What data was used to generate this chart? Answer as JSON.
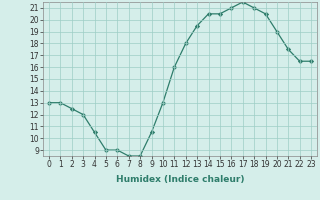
{
  "x": [
    0,
    1,
    2,
    3,
    4,
    5,
    6,
    7,
    8,
    9,
    10,
    11,
    12,
    13,
    14,
    15,
    16,
    17,
    18,
    19,
    20,
    21,
    22,
    23
  ],
  "y": [
    13,
    13,
    12.5,
    12,
    10.5,
    9,
    9,
    8.5,
    8.5,
    10.5,
    13,
    16,
    18,
    19.5,
    20.5,
    20.5,
    21,
    21.5,
    21,
    20.5,
    19,
    17.5,
    16.5,
    16.5
  ],
  "line_color": "#2e7d6b",
  "marker": "D",
  "marker_size": 2.2,
  "bg_color": "#d5eeea",
  "grid_color": "#9ecec6",
  "xlabel": "Humidex (Indice chaleur)",
  "xlim": [
    -0.5,
    23.5
  ],
  "ylim": [
    8.5,
    21.5
  ],
  "yticks": [
    9,
    10,
    11,
    12,
    13,
    14,
    15,
    16,
    17,
    18,
    19,
    20,
    21
  ],
  "xticks": [
    0,
    1,
    2,
    3,
    4,
    5,
    6,
    7,
    8,
    9,
    10,
    11,
    12,
    13,
    14,
    15,
    16,
    17,
    18,
    19,
    20,
    21,
    22,
    23
  ],
  "xtick_labels": [
    "0",
    "1",
    "2",
    "3",
    "4",
    "5",
    "6",
    "7",
    "8",
    "9",
    "10",
    "11",
    "12",
    "13",
    "14",
    "15",
    "16",
    "17",
    "18",
    "19",
    "20",
    "21",
    "22",
    "23"
  ],
  "ytick_labels": [
    "9",
    "10",
    "11",
    "12",
    "13",
    "14",
    "15",
    "16",
    "17",
    "18",
    "19",
    "20",
    "21"
  ],
  "tick_fontsize": 5.5,
  "xlabel_fontsize": 6.5
}
